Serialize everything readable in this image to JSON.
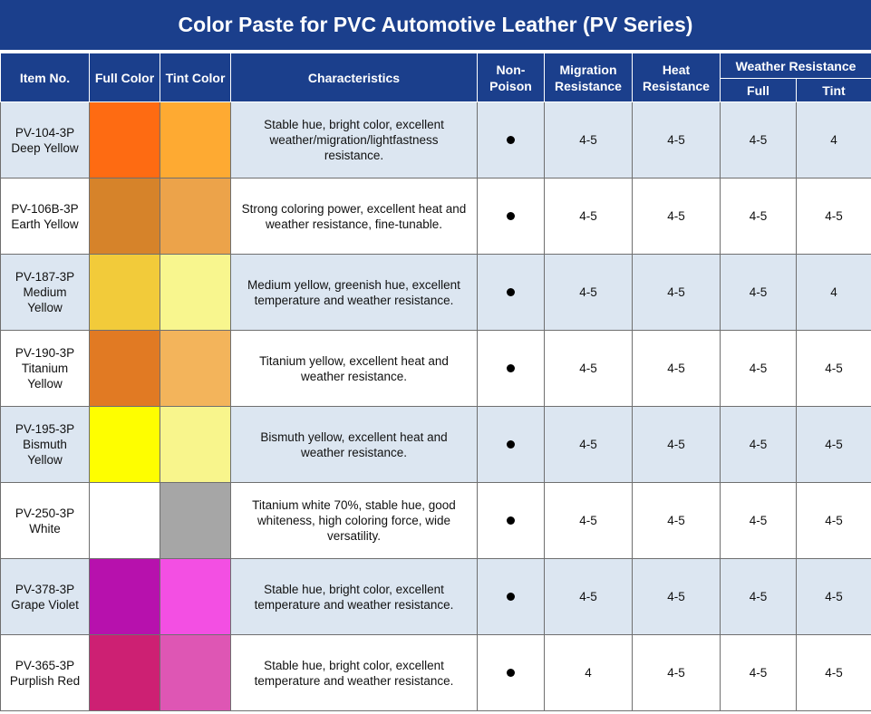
{
  "title": "Color Paste for PVC Automotive Leather (PV Series)",
  "headers": {
    "item_no": "Item No.",
    "full_color": "Full Color",
    "tint_color": "Tint Color",
    "characteristics": "Characteristics",
    "non_poison": "Non-\nPoison",
    "migration": "Migration\nResistance",
    "heat": "Heat\nResistance",
    "weather": "Weather Resistance",
    "weather_full": "Full",
    "weather_tint": "Tint"
  },
  "rows": [
    {
      "item": "PV-104-3P\nDeep Yellow",
      "full_color": "#fe6b12",
      "tint_color": "#feaa32",
      "characteristics": "Stable hue, bright color, excellent\nweather/migration/lightfastness\nresistance.",
      "non_poison": "dot",
      "migration": "4-5",
      "heat": "4-5",
      "weather_full": "4-5",
      "weather_tint": "4"
    },
    {
      "item": "PV-106B-3P\nEarth Yellow",
      "full_color": "#d6832a",
      "tint_color": "#eca34a",
      "characteristics": "Strong coloring power, excellent heat and\nweather resistance, fine-tunable.",
      "non_poison": "dot",
      "migration": "4-5",
      "heat": "4-5",
      "weather_full": "4-5",
      "weather_tint": "4-5"
    },
    {
      "item": "PV-187-3P\nMedium\nYellow",
      "full_color": "#f2cb3a",
      "tint_color": "#f8f68e",
      "characteristics": "Medium yellow, greenish hue, excellent\ntemperature and weather resistance.",
      "non_poison": "dot",
      "migration": "4-5",
      "heat": "4-5",
      "weather_full": "4-5",
      "weather_tint": "4"
    },
    {
      "item": "PV-190-3P\nTitanium\nYellow",
      "full_color": "#e17a23",
      "tint_color": "#f3b45b",
      "characteristics": "Titanium yellow, excellent heat and\nweather resistance.",
      "non_poison": "dot",
      "migration": "4-5",
      "heat": "4-5",
      "weather_full": "4-5",
      "weather_tint": "4-5"
    },
    {
      "item": "PV-195-3P\nBismuth\nYellow",
      "full_color": "#fefe00",
      "tint_color": "#f8f58c",
      "characteristics": "Bismuth yellow, excellent heat and\nweather resistance.",
      "non_poison": "dot",
      "migration": "4-5",
      "heat": "4-5",
      "weather_full": "4-5",
      "weather_tint": "4-5"
    },
    {
      "item": "PV-250-3P\nWhite",
      "full_color": "#ffffff",
      "tint_color": "#a6a6a6",
      "characteristics": "Titanium white 70%, stable hue, good\nwhiteness, high coloring force, wide\nversatility.",
      "non_poison": "dot",
      "migration": "4-5",
      "heat": "4-5",
      "weather_full": "4-5",
      "weather_tint": "4-5"
    },
    {
      "item": "PV-378-3P\nGrape Violet",
      "full_color": "#b711ad",
      "tint_color": "#f34fe3",
      "characteristics": "Stable hue, bright color, excellent\ntemperature and weather resistance.",
      "non_poison": "dot",
      "migration": "4-5",
      "heat": "4-5",
      "weather_full": "4-5",
      "weather_tint": "4-5"
    },
    {
      "item": "PV-365-3P\nPurplish Red",
      "full_color": "#cd2073",
      "tint_color": "#de56b4",
      "characteristics": "Stable hue, bright color, excellent\ntemperature and weather resistance.",
      "non_poison": "dot",
      "migration": "4",
      "heat": "4-5",
      "weather_full": "4-5",
      "weather_tint": "4-5"
    }
  ]
}
